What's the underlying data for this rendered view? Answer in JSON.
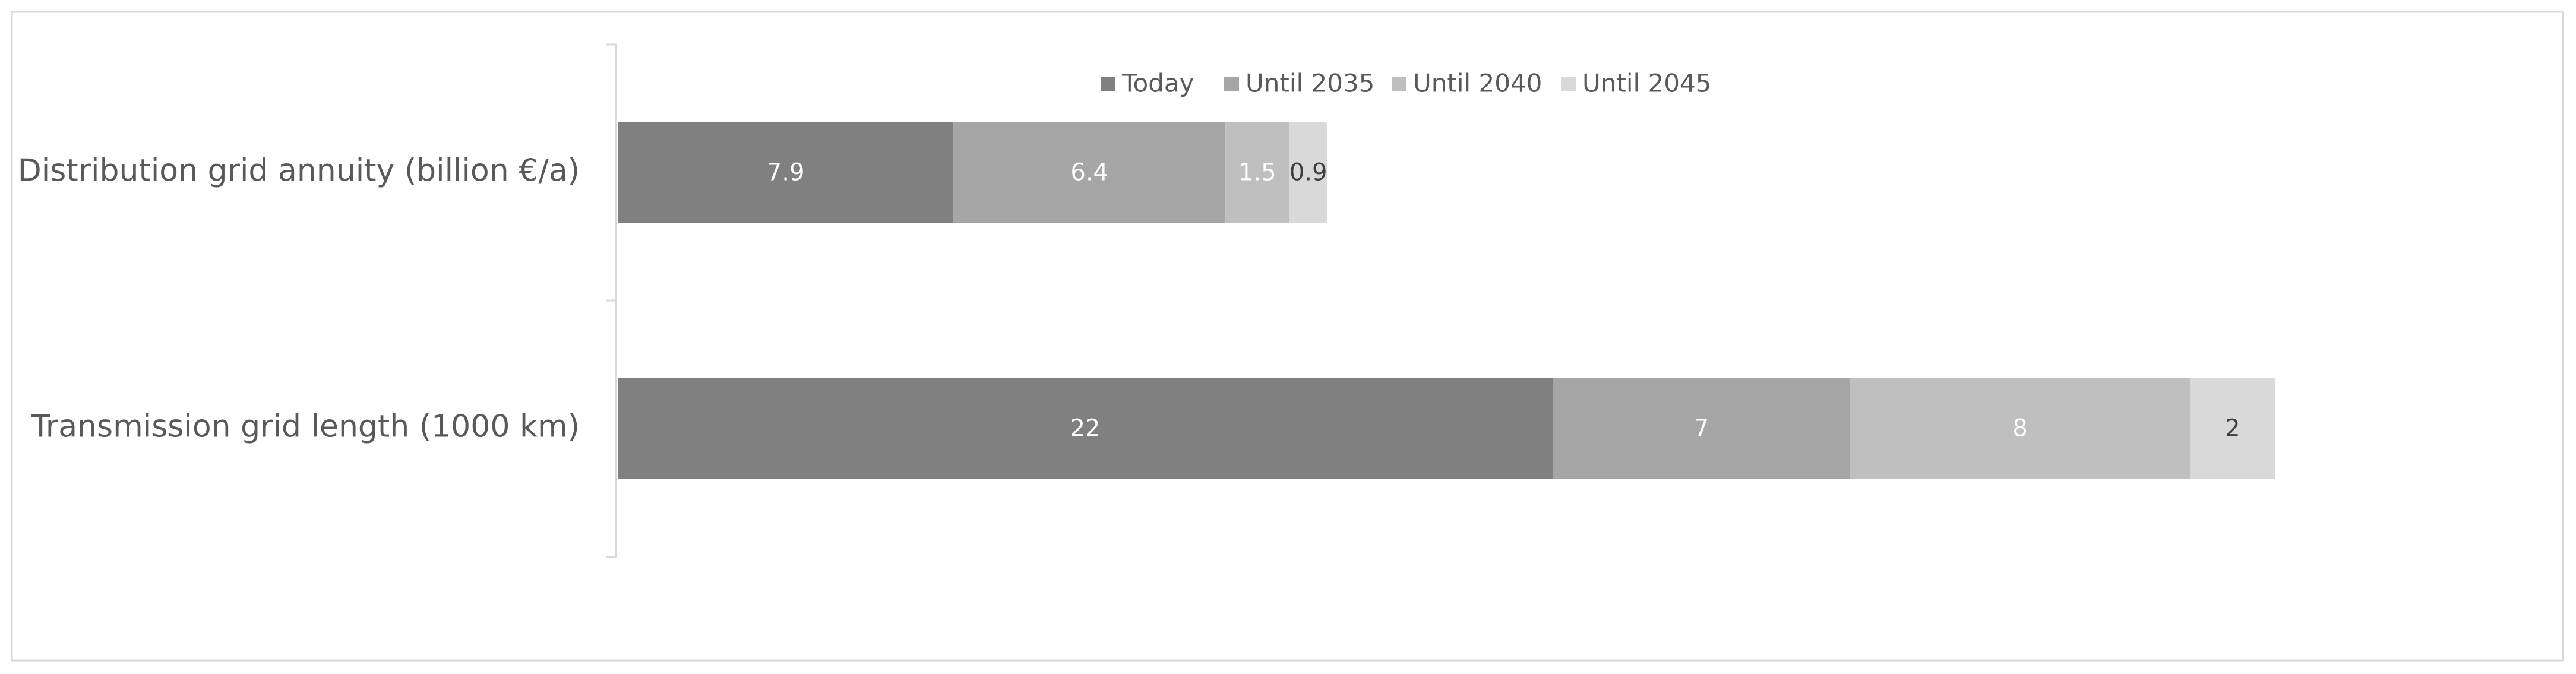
{
  "chart_data": {
    "type": "bar",
    "orientation": "horizontal",
    "stacked": true,
    "categories": [
      "Distribution grid annuity (billion €/a)",
      "Transmission grid length (1000 km)"
    ],
    "series": [
      {
        "name": "Today",
        "color": "#808080",
        "label_color": "#ffffff",
        "values": [
          7.9,
          22
        ]
      },
      {
        "name": "Until 2035",
        "color": "#a6a6a6",
        "label_color": "#ffffff",
        "values": [
          6.4,
          7
        ]
      },
      {
        "name": "Until 2040",
        "color": "#bfbfbf",
        "label_color": "#ffffff",
        "values": [
          1.5,
          8
        ]
      },
      {
        "name": "Until 2045",
        "color": "#d9d9d9",
        "label_color": "#404040",
        "values": [
          0.9,
          2
        ]
      }
    ],
    "legend": "top",
    "grid": false
  }
}
